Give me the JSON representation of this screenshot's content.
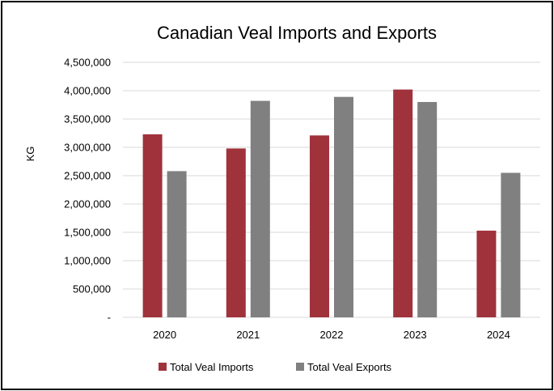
{
  "chart_data": {
    "type": "bar",
    "title": "Canadian Veal Imports and Exports",
    "xlabel": "",
    "ylabel": "KG",
    "categories": [
      "2020",
      "2021",
      "2022",
      "2023",
      "2024"
    ],
    "series": [
      {
        "name": "Total Veal Imports",
        "color": "#a0323c",
        "values": [
          3230000,
          2980000,
          3210000,
          4020000,
          1530000
        ]
      },
      {
        "name": "Total Veal Exports",
        "color": "#808080",
        "values": [
          2580000,
          3820000,
          3890000,
          3800000,
          2550000
        ]
      }
    ],
    "ylim": [
      0,
      4500000
    ],
    "yticks": [
      0,
      500000,
      1000000,
      1500000,
      2000000,
      2500000,
      3000000,
      3500000,
      4000000,
      4500000
    ],
    "ytick_labels": [
      "-",
      "500,000",
      "1,000,000",
      "1,500,000",
      "2,000,000",
      "2,500,000",
      "3,000,000",
      "3,500,000",
      "4,000,000",
      "4,500,000"
    ],
    "grid": true,
    "legend_position": "bottom"
  }
}
